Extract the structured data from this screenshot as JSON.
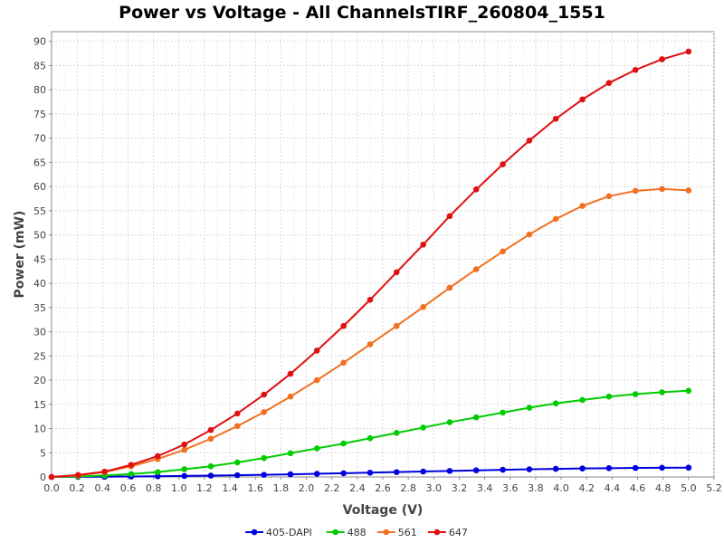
{
  "chart_data": {
    "type": "line",
    "title": "Power vs Voltage - All ChannelsTIRF_260804_1551",
    "xlabel": "Voltage (V)",
    "ylabel": "Power (mW)",
    "xlim": [
      0.0,
      5.2
    ],
    "ylim": [
      0,
      92
    ],
    "xticks": [
      "0.0",
      "0.2",
      "0.4",
      "0.6",
      "0.8",
      "1.0",
      "1.2",
      "1.4",
      "1.6",
      "1.8",
      "2.0",
      "2.2",
      "2.4",
      "2.6",
      "2.8",
      "3.0",
      "3.2",
      "3.4",
      "3.6",
      "3.8",
      "4.0",
      "4.2",
      "4.4",
      "4.6",
      "4.8",
      "5.0",
      "5.2"
    ],
    "yticks": [
      "0",
      "5",
      "10",
      "15",
      "20",
      "25",
      "30",
      "35",
      "40",
      "45",
      "50",
      "55",
      "60",
      "65",
      "70",
      "75",
      "80",
      "85",
      "90"
    ],
    "grid": true,
    "legend_position": "bottom",
    "x": [
      0.0,
      0.208,
      0.417,
      0.625,
      0.833,
      1.042,
      1.25,
      1.458,
      1.667,
      1.875,
      2.083,
      2.292,
      2.5,
      2.708,
      2.917,
      3.125,
      3.333,
      3.542,
      3.75,
      3.958,
      4.167,
      4.375,
      4.583,
      4.792,
      5.0
    ],
    "series": [
      {
        "name": "405-DAPI",
        "color": "#0000e0",
        "values": [
          0.0,
          0.02,
          0.05,
          0.09,
          0.14,
          0.2,
          0.27,
          0.35,
          0.44,
          0.54,
          0.65,
          0.76,
          0.88,
          1.0,
          1.12,
          1.24,
          1.36,
          1.48,
          1.58,
          1.67,
          1.75,
          1.81,
          1.86,
          1.9,
          1.92
        ]
      },
      {
        "name": "488",
        "color": "#00cc00",
        "values": [
          0.0,
          0.1,
          0.3,
          0.6,
          1.0,
          1.6,
          2.2,
          3.0,
          3.9,
          4.9,
          5.9,
          6.9,
          8.0,
          9.1,
          10.2,
          11.3,
          12.3,
          13.3,
          14.3,
          15.2,
          15.9,
          16.6,
          17.1,
          17.5,
          17.8
        ]
      },
      {
        "name": "561",
        "color": "#f07020",
        "values": [
          0.0,
          0.3,
          1.0,
          2.2,
          3.7,
          5.6,
          7.9,
          10.5,
          13.4,
          16.6,
          20.0,
          23.6,
          27.4,
          31.2,
          35.1,
          39.1,
          42.9,
          46.6,
          50.1,
          53.3,
          56.0,
          58.0,
          59.1,
          59.5,
          59.2
        ]
      },
      {
        "name": "647",
        "color": "#e01010",
        "values": [
          0.0,
          0.4,
          1.1,
          2.5,
          4.3,
          6.7,
          9.7,
          13.1,
          17.0,
          21.3,
          26.1,
          31.2,
          36.6,
          42.3,
          48.0,
          53.9,
          59.4,
          64.6,
          69.5,
          74.0,
          78.0,
          81.4,
          84.1,
          86.3,
          87.9
        ]
      }
    ]
  }
}
